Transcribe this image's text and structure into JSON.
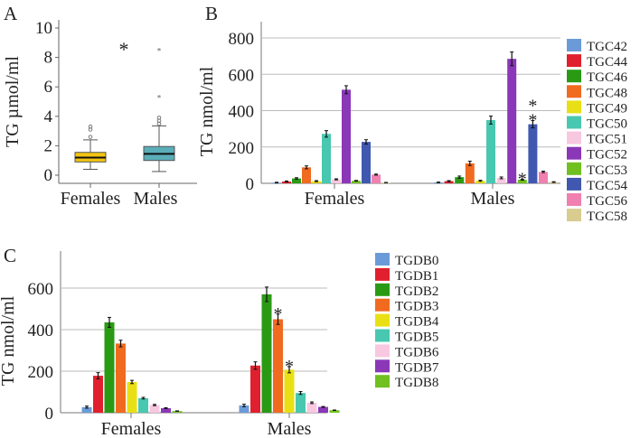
{
  "chart_data": [
    {
      "panel": "A",
      "type": "box",
      "ylabel": "TG µmol/ml",
      "ylim": [
        0,
        10
      ],
      "yticks": [
        0,
        2,
        4,
        6,
        8,
        10
      ],
      "categories": [
        "Females",
        "Males"
      ],
      "boxes": [
        {
          "name": "Females",
          "color": "#f2c40f",
          "whisker_low": 0.4,
          "q1": 0.9,
          "median": 1.2,
          "q3": 1.55,
          "whisker_high": 2.4,
          "outliers": [
            2.6,
            3.1,
            3.3
          ],
          "extremes": []
        },
        {
          "name": "Males",
          "color": "#5aaeb8",
          "whisker_low": 0.25,
          "q1": 1.0,
          "median": 1.45,
          "q3": 1.95,
          "whisker_high": 3.35,
          "outliers": [
            3.5,
            3.7,
            3.9
          ],
          "extremes": [
            5.3,
            8.5
          ]
        }
      ],
      "annotation": "*"
    },
    {
      "panel": "B",
      "type": "bar",
      "ylabel": "TG nmol/ml",
      "ylim": [
        0,
        800
      ],
      "yticks": [
        0,
        200,
        400,
        600,
        800
      ],
      "grid": true,
      "legend": "right",
      "categories": [
        "Females",
        "Males"
      ],
      "series": [
        {
          "name": "TGC42",
          "color": "#6a9bd8",
          "values": [
            4,
            5
          ],
          "err": [
            2,
            2
          ],
          "marks": [
            "",
            ""
          ]
        },
        {
          "name": "TGC44",
          "color": "#e0202e",
          "values": [
            10,
            12
          ],
          "err": [
            3,
            3
          ],
          "marks": [
            "",
            ""
          ]
        },
        {
          "name": "TGC46",
          "color": "#2a9a15",
          "values": [
            27,
            34
          ],
          "err": [
            4,
            6
          ],
          "marks": [
            "",
            ""
          ]
        },
        {
          "name": "TGC48",
          "color": "#f06a20",
          "values": [
            88,
            110
          ],
          "err": [
            8,
            12
          ],
          "marks": [
            "",
            ""
          ]
        },
        {
          "name": "TGC49",
          "color": "#e8e015",
          "values": [
            12,
            14
          ],
          "err": [
            3,
            3
          ],
          "marks": [
            "",
            ""
          ]
        },
        {
          "name": "TGC50",
          "color": "#48c8b0",
          "values": [
            272,
            348
          ],
          "err": [
            18,
            22
          ],
          "marks": [
            "",
            ""
          ]
        },
        {
          "name": "TGC51",
          "color": "#f8c8e0",
          "values": [
            22,
            30
          ],
          "err": [
            3,
            5
          ],
          "marks": [
            "",
            ""
          ]
        },
        {
          "name": "TGC52",
          "color": "#8a38b8",
          "values": [
            515,
            685
          ],
          "err": [
            22,
            38
          ],
          "marks": [
            "",
            ""
          ]
        },
        {
          "name": "TGC53",
          "color": "#70c020",
          "values": [
            14,
            20
          ],
          "err": [
            2,
            3
          ],
          "marks": [
            "",
            "*"
          ]
        },
        {
          "name": "TGC54",
          "color": "#4058b0",
          "values": [
            228,
            325
          ],
          "err": [
            12,
            20
          ],
          "marks": [
            "",
            "**"
          ]
        },
        {
          "name": "TGC56",
          "color": "#f080b0",
          "values": [
            48,
            63
          ],
          "err": [
            3,
            4
          ],
          "marks": [
            "",
            ""
          ]
        },
        {
          "name": "TGC58",
          "color": "#d8cc90",
          "values": [
            4,
            7
          ],
          "err": [
            1,
            2
          ],
          "marks": [
            "",
            ""
          ]
        }
      ]
    },
    {
      "panel": "C",
      "type": "bar",
      "ylabel": "TG nmol/ml",
      "ylim": [
        0,
        780
      ],
      "yticks": [
        0,
        200,
        400,
        600
      ],
      "grid": true,
      "legend": "right",
      "categories": [
        "Females",
        "Males"
      ],
      "series": [
        {
          "name": "TGDB0",
          "color": "#6a9bd8",
          "values": [
            27,
            35
          ],
          "err": [
            5,
            6
          ],
          "marks": [
            "",
            ""
          ]
        },
        {
          "name": "TGDB1",
          "color": "#e0202e",
          "values": [
            178,
            227
          ],
          "err": [
            15,
            18
          ],
          "marks": [
            "",
            ""
          ]
        },
        {
          "name": "TGDB2",
          "color": "#2a9a15",
          "values": [
            435,
            570
          ],
          "err": [
            24,
            35
          ],
          "marks": [
            "",
            ""
          ]
        },
        {
          "name": "TGDB3",
          "color": "#f06a20",
          "values": [
            333,
            450
          ],
          "err": [
            16,
            25
          ],
          "marks": [
            "",
            "*"
          ]
        },
        {
          "name": "TGDB4",
          "color": "#e8e015",
          "values": [
            148,
            207
          ],
          "err": [
            8,
            15
          ],
          "marks": [
            "",
            "*"
          ]
        },
        {
          "name": "TGDB5",
          "color": "#48c8b0",
          "values": [
            70,
            95
          ],
          "err": [
            4,
            7
          ],
          "marks": [
            "",
            ""
          ]
        },
        {
          "name": "TGDB6",
          "color": "#f8c8e0",
          "values": [
            37,
            48
          ],
          "err": [
            3,
            4
          ],
          "marks": [
            "",
            ""
          ]
        },
        {
          "name": "TGDB7",
          "color": "#8a38b8",
          "values": [
            22,
            28
          ],
          "err": [
            2,
            2
          ],
          "marks": [
            "",
            ""
          ]
        },
        {
          "name": "TGDB8",
          "color": "#70c020",
          "values": [
            8,
            12
          ],
          "err": [
            1,
            1
          ],
          "marks": [
            "",
            ""
          ]
        }
      ]
    }
  ]
}
